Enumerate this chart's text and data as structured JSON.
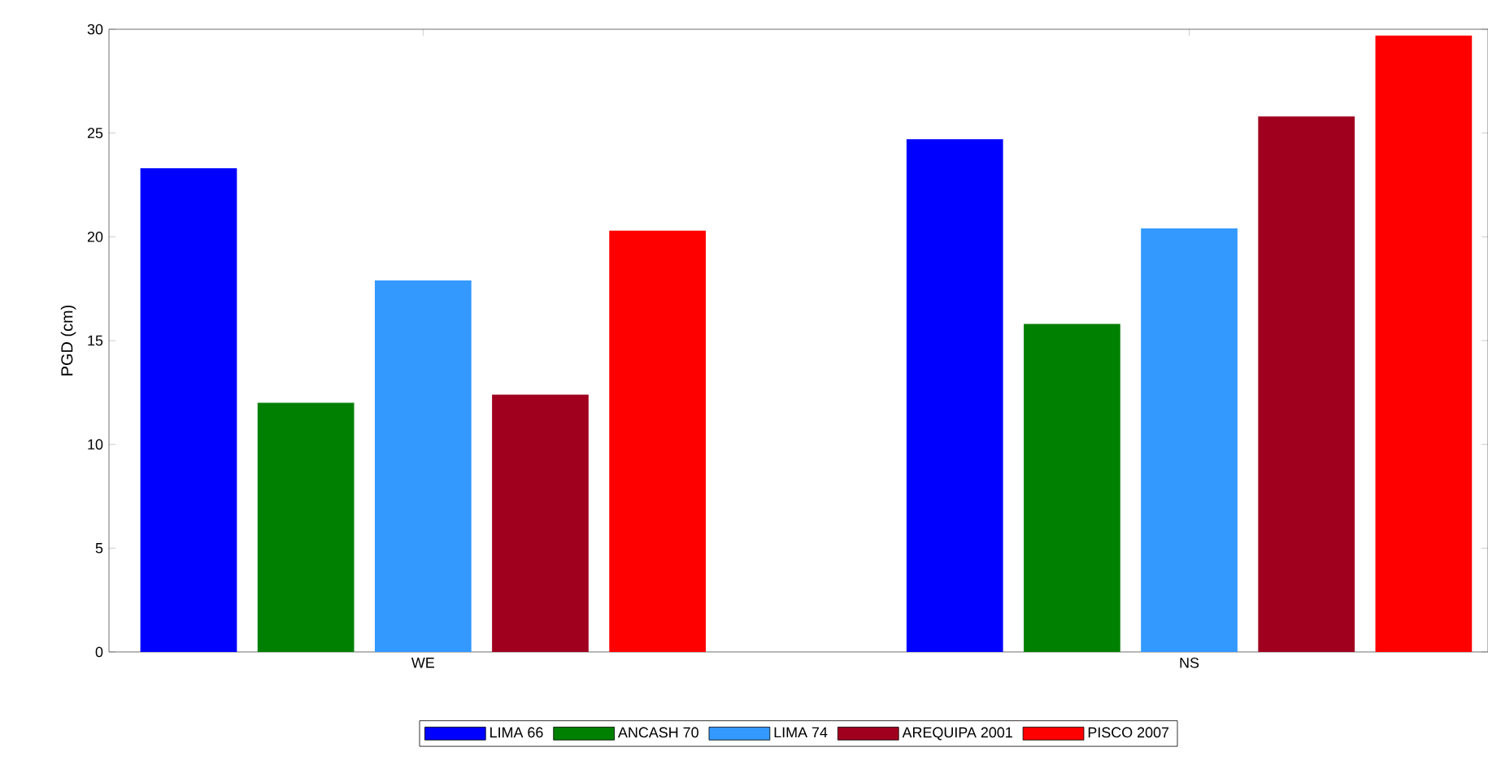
{
  "chart_data": {
    "type": "bar",
    "ylabel": "PGD (cm)",
    "categories": [
      "WE",
      "NS"
    ],
    "series": [
      {
        "name": "LIMA 66",
        "color": "#0000ff",
        "values": [
          23.3,
          24.7
        ]
      },
      {
        "name": "ANCASH 70",
        "color": "#008000",
        "values": [
          12.0,
          15.8
        ]
      },
      {
        "name": "LIMA 74",
        "color": "#3399ff",
        "values": [
          17.9,
          20.4
        ]
      },
      {
        "name": "AREQUIPA 2001",
        "color": "#a0001e",
        "values": [
          12.4,
          25.8
        ]
      },
      {
        "name": "PISCO 2007",
        "color": "#ff0000",
        "values": [
          20.3,
          29.7
        ]
      }
    ],
    "ylim": [
      0,
      30
    ],
    "yticks": [
      0,
      5,
      10,
      15,
      20,
      25,
      30
    ],
    "legend": "bottom",
    "grid": false
  }
}
